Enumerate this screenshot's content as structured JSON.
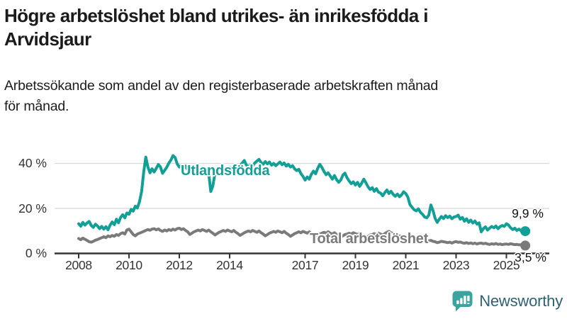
{
  "header": {
    "title_line1": "Högre arbetslöshet bland utrikes- än inrikesfödda i",
    "title_line2": "Arvidsjaur",
    "subtitle_line1": "Arbetssökande som andel av den registerbaserade arbetskraften månad",
    "subtitle_line2": "för månad."
  },
  "colors": {
    "foreign_born": "#12a096",
    "total": "#7a7a7a",
    "grid": "#d8d8d8",
    "axis": "#333333",
    "title_text": "#1b1b1b",
    "tick_text": "#333333",
    "value_text": "#111111",
    "brand_icon": "#3aa49e",
    "brand_text": "#2e6173"
  },
  "footer": {
    "brand": "Newsworthy",
    "logo_icon": "bar-chart-speech-bubble-icon"
  },
  "chart_data": {
    "type": "line",
    "title": "Högre arbetslöshet bland utrikes- än inrikesfödda i Arvidsjaur",
    "subtitle": "Arbetssökande som andel av den registerbaserade arbetskraften månad för månad.",
    "frequency": "monthly",
    "x_start": "2008-01",
    "x_end": "2025-10",
    "x_tick_years": [
      2008,
      2010,
      2012,
      2014,
      2017,
      2019,
      2021,
      2023,
      2025
    ],
    "x_tick_labels": [
      "2008",
      "2010",
      "2012",
      "2014",
      "2017",
      "2019",
      "2021",
      "2023",
      "2025"
    ],
    "y_ticks": [
      0,
      20,
      40
    ],
    "y_tick_labels": [
      "0 %",
      "20 %",
      "40 %"
    ],
    "ylim": [
      0,
      46
    ],
    "grid": true,
    "legend_position": "inline-labels",
    "series": [
      {
        "name": "Utlandsfödda",
        "color": "#12a096",
        "end_label": "9,9 %",
        "end_value": 9.9,
        "values": [
          13.2,
          12.1,
          13.8,
          12.6,
          13.5,
          14.2,
          12.4,
          11.6,
          13.0,
          12.2,
          11.0,
          12.0,
          10.8,
          11.9,
          10.5,
          12.6,
          14.0,
          12.8,
          15.2,
          13.6,
          16.0,
          17.2,
          15.8,
          18.0,
          17.4,
          19.6,
          18.8,
          21.0,
          20.2,
          23.0,
          27.5,
          36.0,
          42.8,
          38.5,
          35.8,
          37.6,
          36.2,
          37.8,
          39.5,
          38.4,
          35.6,
          36.9,
          38.3,
          40.1,
          41.5,
          43.5,
          42.6,
          39.8,
          38.4,
          38.9,
          37.6,
          38.8,
          37.2,
          38.5,
          37.0,
          37.8,
          36.4,
          37.6,
          36.8,
          37.4,
          36.6,
          37.2,
          35.8,
          27.5,
          30.0,
          35.5,
          36.8,
          35.4,
          36.2,
          37.0,
          36.0,
          37.8,
          38.2,
          37.4,
          38.8,
          37.0,
          38.4,
          39.0,
          40.2,
          41.3,
          39.2,
          38.6,
          39.4,
          38.8,
          40.2,
          41.0,
          41.8,
          40.4,
          39.6,
          40.8,
          39.8,
          40.6,
          39.2,
          40.0,
          39.0,
          39.8,
          40.6,
          39.4,
          40.2,
          38.8,
          39.6,
          38.4,
          39.0,
          37.6,
          36.8,
          37.4,
          35.5,
          34.2,
          32.6,
          34.0,
          33.0,
          35.2,
          36.6,
          35.4,
          37.8,
          39.6,
          38.2,
          36.4,
          35.0,
          35.8,
          34.4,
          33.0,
          34.6,
          32.8,
          31.6,
          32.6,
          34.8,
          35.7,
          33.6,
          32.2,
          31.0,
          31.8,
          30.4,
          31.6,
          29.8,
          31.2,
          33.0,
          31.4,
          29.6,
          28.4,
          29.2,
          27.6,
          28.8,
          27.2,
          26.8,
          25.6,
          27.0,
          28.2,
          26.6,
          27.6,
          26.2,
          25.4,
          26.4,
          25.2,
          26.0,
          27.4,
          26.6,
          25.0,
          21.7,
          20.5,
          19.4,
          18.9,
          19.8,
          18.3,
          17.4,
          16.2,
          15.8,
          17.0,
          21.5,
          19.0,
          15.6,
          13.8,
          15.2,
          16.4,
          15.5,
          16.8,
          15.9,
          16.6,
          15.4,
          16.2,
          16.4,
          17.0,
          15.2,
          16.0,
          14.3,
          15.4,
          13.8,
          14.8,
          13.5,
          14.4,
          13.0,
          13.6,
          9.6,
          11.0,
          11.8,
          10.4,
          11.2,
          12.0,
          11.4,
          12.2,
          11.0,
          11.9,
          12.4,
          12.0,
          13.2,
          12.6,
          11.4,
          10.6,
          11.2,
          10.2,
          10.8,
          10.0,
          10.3,
          9.9
        ]
      },
      {
        "name": "Total arbetslöshet",
        "color": "#7a7a7a",
        "end_label": "3,5 %",
        "end_value": 3.5,
        "values": [
          6.6,
          6.1,
          6.8,
          6.3,
          5.8,
          5.2,
          5.0,
          5.4,
          5.9,
          6.2,
          6.6,
          7.0,
          7.4,
          7.0,
          7.8,
          7.4,
          8.0,
          7.6,
          8.4,
          8.0,
          8.8,
          9.2,
          8.6,
          10.4,
          10.8,
          9.6,
          8.4,
          7.8,
          8.6,
          9.0,
          9.4,
          9.8,
          10.2,
          10.6,
          10.3,
          10.8,
          11.0,
          10.5,
          10.9,
          10.2,
          9.8,
          10.4,
          10.0,
          10.6,
          10.2,
          10.8,
          10.4,
          11.0,
          11.2,
          10.6,
          11.0,
          10.2,
          9.6,
          8.4,
          9.0,
          9.6,
          10.0,
          10.4,
          10.0,
          10.6,
          10.2,
          9.8,
          10.4,
          9.6,
          9.0,
          8.2,
          8.8,
          9.4,
          9.8,
          10.2,
          9.8,
          10.4,
          10.0,
          9.6,
          10.2,
          9.4,
          8.8,
          8.0,
          8.6,
          9.2,
          9.6,
          10.0,
          9.6,
          10.2,
          9.8,
          9.4,
          10.0,
          9.2,
          8.6,
          7.8,
          8.4,
          9.0,
          9.4,
          9.8,
          9.4,
          10.0,
          9.6,
          9.2,
          9.8,
          9.0,
          8.4,
          7.6,
          8.2,
          8.8,
          9.2,
          9.6,
          9.2,
          9.8,
          9.4,
          9.0,
          9.6,
          8.8,
          8.2,
          7.4,
          8.0,
          8.6,
          9.0,
          9.4,
          9.0,
          9.6,
          9.0,
          8.6,
          9.2,
          8.4,
          7.8,
          7.2,
          7.8,
          8.4,
          8.6,
          9.0,
          8.6,
          9.2,
          8.8,
          8.4,
          9.0,
          8.2,
          7.6,
          7.0,
          7.6,
          8.2,
          8.4,
          8.8,
          8.4,
          9.0,
          8.6,
          8.2,
          8.8,
          9.4,
          9.8,
          9.2,
          8.8,
          8.4,
          8.0,
          7.8,
          7.6,
          7.4,
          7.6,
          7.2,
          7.0,
          6.8,
          6.4,
          6.0,
          6.2,
          5.8,
          5.6,
          5.4,
          5.2,
          5.6,
          5.8,
          5.4,
          5.2,
          4.8,
          5.0,
          5.4,
          5.2,
          5.0,
          4.8,
          5.0,
          4.6,
          5.0,
          5.3,
          4.9,
          5.1,
          4.7,
          4.5,
          4.8,
          4.4,
          4.7,
          4.3,
          4.6,
          4.2,
          4.5,
          4.6,
          4.3,
          4.5,
          4.2,
          4.0,
          4.3,
          4.1,
          4.4,
          4.0,
          4.2,
          3.9,
          4.1,
          4.2,
          4.0,
          4.3,
          4.1,
          3.9,
          4.0,
          3.8,
          3.9,
          3.6,
          3.5
        ]
      }
    ]
  }
}
